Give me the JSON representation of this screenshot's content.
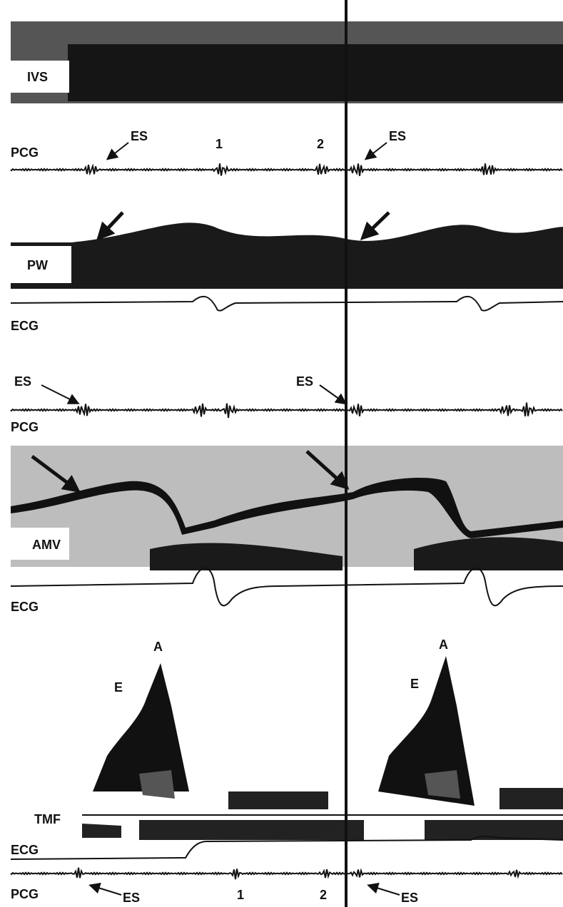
{
  "panel1": {
    "ivs": "IVS",
    "pcg": "PCG",
    "es_left": "ES",
    "sound1": "1",
    "sound2": "2",
    "es_right": "ES",
    "pw": "PW",
    "ecg": "ECG"
  },
  "panel2": {
    "es_left": "ES",
    "es_right": "ES",
    "pcg": "PCG",
    "amv": "AMV",
    "ecg": "ECG"
  },
  "panel3": {
    "a_left": "A",
    "e_left": "E",
    "a_right": "A",
    "e_right": "E",
    "tmf": "TMF",
    "ecg": "ECG",
    "pcg": "PCG",
    "es_left": "ES",
    "sound1": "1",
    "sound2": "2",
    "es_right": "ES"
  }
}
